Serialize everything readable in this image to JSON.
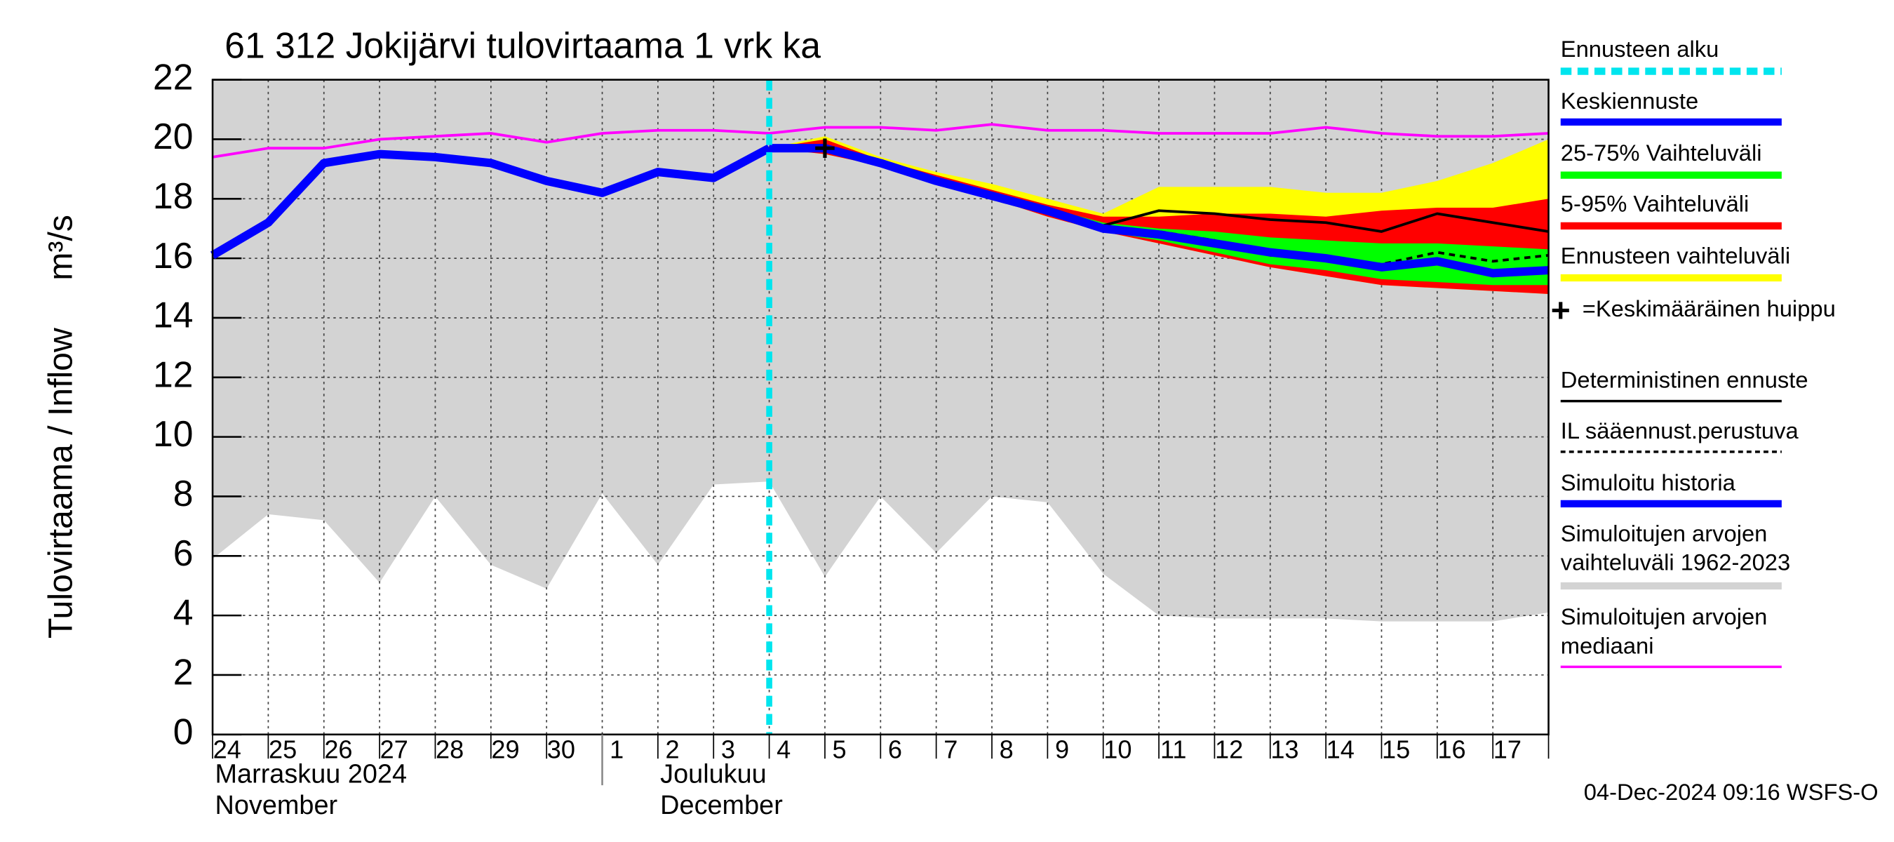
{
  "chart_data": {
    "type": "line",
    "title": "61 312 Jokijärvi tulovirtaama 1 vrk ka",
    "ylabel": "Tulovirtaama / Inflow",
    "yunit": "m³/s",
    "categories": [
      "24",
      "25",
      "26",
      "27",
      "28",
      "29",
      "30",
      "1",
      "2",
      "3",
      "4",
      "5",
      "6",
      "7",
      "8",
      "9",
      "10",
      "11",
      "12",
      "13",
      "14",
      "15",
      "16",
      "17",
      null
    ],
    "month_labels": [
      [
        "Marraskuu 2024",
        "November"
      ],
      [
        "Joulukuu",
        "December"
      ]
    ],
    "ylim": [
      0,
      22
    ],
    "yticks": [
      0,
      2,
      4,
      6,
      8,
      10,
      12,
      14,
      16,
      18,
      20,
      22
    ],
    "grid": true,
    "footer": "04-Dec-2024 09:16 WSFS-O",
    "series": [
      {
        "name": "Ennusteen alku",
        "kind": "vline",
        "color": "#00e5ee",
        "dashed": true
      },
      {
        "name": "Keskiennuste",
        "kind": "line",
        "color": "#0000ff",
        "thick": true,
        "values": [
          null,
          null,
          null,
          null,
          null,
          null,
          null,
          null,
          null,
          null,
          19.7,
          19.7,
          19.2,
          18.6,
          18.1,
          17.6,
          17.0,
          16.8,
          16.5,
          16.2,
          16.0,
          15.7,
          15.9,
          15.5,
          15.6
        ]
      },
      {
        "name": "25-75% Vaihteluväli",
        "kind": "band",
        "color": "#00ff00",
        "high": [
          null,
          null,
          null,
          null,
          null,
          null,
          null,
          null,
          null,
          null,
          19.7,
          19.8,
          19.2,
          18.7,
          18.2,
          17.7,
          17.2,
          17.0,
          16.9,
          16.7,
          16.6,
          16.5,
          16.5,
          16.4,
          16.3
        ],
        "low": [
          null,
          null,
          null,
          null,
          null,
          null,
          null,
          null,
          null,
          null,
          19.7,
          19.6,
          19.2,
          18.6,
          18.1,
          17.5,
          16.9,
          16.6,
          16.2,
          15.8,
          15.6,
          15.3,
          15.2,
          15.1,
          15.1
        ]
      },
      {
        "name": "5-95% Vaihteluväli",
        "kind": "band",
        "color": "#ff0000",
        "high": [
          null,
          null,
          null,
          null,
          null,
          null,
          null,
          null,
          null,
          null,
          19.7,
          20.0,
          19.3,
          18.8,
          18.3,
          17.8,
          17.4,
          17.4,
          17.5,
          17.5,
          17.4,
          17.6,
          17.7,
          17.7,
          18.0
        ],
        "low": [
          null,
          null,
          null,
          null,
          null,
          null,
          null,
          null,
          null,
          null,
          19.7,
          19.5,
          19.1,
          18.5,
          18.0,
          17.4,
          16.9,
          16.5,
          16.1,
          15.7,
          15.4,
          15.1,
          15.0,
          14.9,
          14.8
        ]
      },
      {
        "name": "Ennusteen vaihteluväli",
        "kind": "band",
        "color": "#ffff00",
        "high": [
          null,
          null,
          null,
          null,
          null,
          null,
          null,
          null,
          null,
          null,
          19.7,
          20.1,
          19.4,
          18.9,
          18.5,
          18.0,
          17.5,
          18.4,
          18.4,
          18.4,
          18.2,
          18.2,
          18.6,
          19.2,
          20.0
        ],
        "low": [
          null,
          null,
          null,
          null,
          null,
          null,
          null,
          null,
          null,
          null,
          19.7,
          19.5,
          19.1,
          18.5,
          18.0,
          17.4,
          16.9,
          16.5,
          16.1,
          15.7,
          15.4,
          15.1,
          15.0,
          14.9,
          14.8
        ]
      },
      {
        "name": "=Keskimääräinen huippu",
        "kind": "marker",
        "color": "#000000",
        "values": [
          null,
          null,
          null,
          null,
          null,
          null,
          null,
          null,
          null,
          null,
          null,
          19.7,
          null,
          null,
          null,
          null,
          null,
          null,
          null,
          null,
          null,
          null,
          null,
          null,
          null
        ]
      },
      {
        "name": "Deterministinen ennuste",
        "kind": "line",
        "color": "#000000",
        "values": [
          null,
          null,
          null,
          null,
          null,
          null,
          null,
          null,
          null,
          null,
          19.7,
          19.8,
          19.2,
          18.6,
          18.2,
          17.7,
          17.1,
          17.6,
          17.5,
          17.3,
          17.2,
          16.9,
          17.5,
          17.2,
          16.9
        ]
      },
      {
        "name": "IL sääennust.perustuva",
        "kind": "line",
        "color": "#000000",
        "dashed": true,
        "values": [
          null,
          null,
          null,
          null,
          null,
          null,
          null,
          null,
          null,
          null,
          19.7,
          19.7,
          19.2,
          18.6,
          18.0,
          17.5,
          17.0,
          16.9,
          16.6,
          16.1,
          16.0,
          15.8,
          16.2,
          15.9,
          16.1
        ]
      },
      {
        "name": "Simuloitu historia",
        "kind": "line",
        "color": "#0000ff",
        "thick": true,
        "values": [
          16.1,
          17.2,
          19.2,
          19.5,
          19.4,
          19.2,
          18.6,
          18.2,
          18.9,
          18.7,
          19.7,
          null,
          null,
          null,
          null,
          null,
          null,
          null,
          null,
          null,
          null,
          null,
          null,
          null,
          null
        ]
      },
      {
        "name": "Simuloitujen arvojen vaihteluväli 1962-2023",
        "kind": "band",
        "color": "#d3d3d3",
        "high": [
          22,
          22,
          22,
          22,
          22,
          22,
          22,
          22,
          22,
          22,
          22,
          22,
          22,
          22,
          22,
          22,
          22,
          22,
          22,
          22,
          22,
          22,
          22,
          22,
          22
        ],
        "low": [
          5.9,
          7.4,
          7.2,
          5.1,
          8.0,
          5.7,
          4.9,
          8.1,
          5.7,
          8.4,
          8.5,
          5.3,
          8.0,
          6.1,
          8.0,
          7.8,
          5.4,
          4.0,
          3.9,
          3.9,
          3.9,
          3.8,
          3.8,
          3.8,
          4.1
        ]
      },
      {
        "name": "Simuloitujen arvojen mediaani",
        "kind": "line",
        "color": "#ff00ff",
        "values": [
          19.4,
          19.7,
          19.7,
          20.0,
          20.1,
          20.2,
          19.9,
          20.2,
          20.3,
          20.3,
          20.2,
          20.4,
          20.4,
          20.3,
          20.5,
          20.3,
          20.3,
          20.2,
          20.2,
          20.2,
          20.4,
          20.2,
          20.1,
          20.1,
          20.2
        ]
      }
    ]
  }
}
